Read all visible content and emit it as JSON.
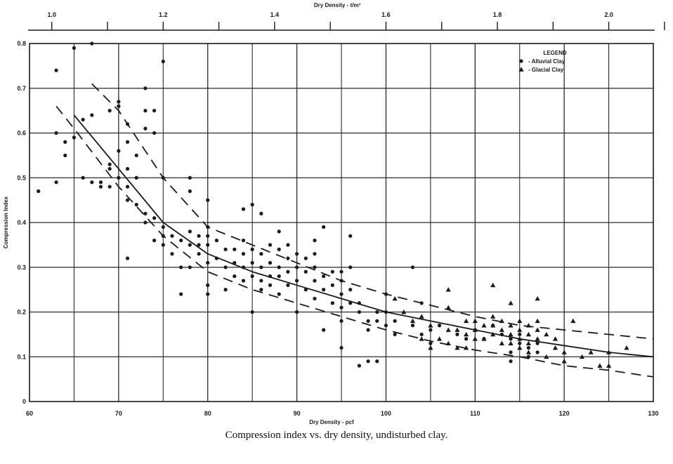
{
  "caption": "Compression index vs. dry density, undisturbed clay.",
  "chart_data": {
    "type": "scatter",
    "xlabel": "Dry Density - pcf",
    "ylabel": "Compression Index",
    "x2label": "Dry Density - t/m³",
    "xlim": [
      60,
      130
    ],
    "ylim": [
      0,
      0.8
    ],
    "x2lim": [
      0.96,
      2.08
    ],
    "x_ticks": [
      "60",
      "70",
      "80",
      "90",
      "100",
      "110",
      "120",
      "130"
    ],
    "y_ticks": [
      "0",
      "0.1",
      "0.2",
      "0.3",
      "0.4",
      "0.5",
      "0.6",
      "0.7",
      "0.8"
    ],
    "x2_ticks": [
      "1.0",
      "1.2",
      "1.4",
      "1.6",
      "1.8",
      "2.0"
    ],
    "grid": true,
    "legend": {
      "title": "LEGEND",
      "position": "top-right",
      "entries": [
        {
          "marker": "circle",
          "label": "- Alluvial Clay"
        },
        {
          "marker": "triangle",
          "label": "- Glacial Clay"
        }
      ]
    },
    "series": [
      {
        "name": "Alluvial Clay",
        "marker": "circle",
        "points": [
          [
            61,
            0.47
          ],
          [
            63,
            0.74
          ],
          [
            63,
            0.6
          ],
          [
            63,
            0.49
          ],
          [
            64,
            0.58
          ],
          [
            64,
            0.55
          ],
          [
            65,
            0.79
          ],
          [
            65,
            0.59
          ],
          [
            66,
            0.63
          ],
          [
            66,
            0.5
          ],
          [
            67,
            0.8
          ],
          [
            67,
            0.64
          ],
          [
            67,
            0.49
          ],
          [
            68,
            0.49
          ],
          [
            68,
            0.48
          ],
          [
            69,
            0.65
          ],
          [
            69,
            0.53
          ],
          [
            69,
            0.52
          ],
          [
            69,
            0.48
          ],
          [
            70,
            0.67
          ],
          [
            70,
            0.66
          ],
          [
            70,
            0.56
          ],
          [
            70,
            0.5
          ],
          [
            71,
            0.62
          ],
          [
            71,
            0.58
          ],
          [
            71,
            0.52
          ],
          [
            71,
            0.48
          ],
          [
            71,
            0.45
          ],
          [
            71,
            0.32
          ],
          [
            72,
            0.55
          ],
          [
            72,
            0.5
          ],
          [
            72,
            0.44
          ],
          [
            73,
            0.7
          ],
          [
            73,
            0.65
          ],
          [
            73,
            0.61
          ],
          [
            73,
            0.42
          ],
          [
            73,
            0.4
          ],
          [
            74,
            0.65
          ],
          [
            74,
            0.6
          ],
          [
            74,
            0.41
          ],
          [
            74,
            0.36
          ],
          [
            75,
            0.76
          ],
          [
            75,
            0.5
          ],
          [
            75,
            0.39
          ],
          [
            75,
            0.37
          ],
          [
            75,
            0.35
          ],
          [
            76,
            0.37
          ],
          [
            76,
            0.33
          ],
          [
            77,
            0.36
          ],
          [
            77,
            0.24
          ],
          [
            77,
            0.3
          ],
          [
            78,
            0.5
          ],
          [
            78,
            0.47
          ],
          [
            78,
            0.38
          ],
          [
            78,
            0.35
          ],
          [
            78,
            0.3
          ],
          [
            79,
            0.37
          ],
          [
            79,
            0.35
          ],
          [
            79,
            0.33
          ],
          [
            80,
            0.45
          ],
          [
            80,
            0.39
          ],
          [
            80,
            0.37
          ],
          [
            80,
            0.35
          ],
          [
            80,
            0.31
          ],
          [
            80,
            0.26
          ],
          [
            80,
            0.24
          ],
          [
            81,
            0.36
          ],
          [
            81,
            0.32
          ],
          [
            82,
            0.34
          ],
          [
            82,
            0.3
          ],
          [
            82,
            0.25
          ],
          [
            83,
            0.34
          ],
          [
            83,
            0.31
          ],
          [
            83,
            0.28
          ],
          [
            84,
            0.43
          ],
          [
            84,
            0.36
          ],
          [
            84,
            0.33
          ],
          [
            84,
            0.3
          ],
          [
            84,
            0.27
          ],
          [
            85,
            0.44
          ],
          [
            85,
            0.34
          ],
          [
            85,
            0.31
          ],
          [
            85,
            0.28
          ],
          [
            85,
            0.2
          ],
          [
            86,
            0.42
          ],
          [
            86,
            0.33
          ],
          [
            86,
            0.3
          ],
          [
            86,
            0.27
          ],
          [
            86,
            0.25
          ],
          [
            87,
            0.35
          ],
          [
            87,
            0.31
          ],
          [
            87,
            0.28
          ],
          [
            87,
            0.26
          ],
          [
            88,
            0.38
          ],
          [
            88,
            0.34
          ],
          [
            88,
            0.3
          ],
          [
            88,
            0.28
          ],
          [
            88,
            0.24
          ],
          [
            89,
            0.35
          ],
          [
            89,
            0.32
          ],
          [
            89,
            0.29
          ],
          [
            89,
            0.26
          ],
          [
            90,
            0.33
          ],
          [
            90,
            0.3
          ],
          [
            90,
            0.27
          ],
          [
            90,
            0.2
          ],
          [
            91,
            0.32
          ],
          [
            91,
            0.29
          ],
          [
            91,
            0.25
          ],
          [
            92,
            0.36
          ],
          [
            92,
            0.33
          ],
          [
            92,
            0.3
          ],
          [
            92,
            0.27
          ],
          [
            92,
            0.23
          ],
          [
            93,
            0.39
          ],
          [
            93,
            0.28
          ],
          [
            93,
            0.25
          ],
          [
            93,
            0.16
          ],
          [
            94,
            0.29
          ],
          [
            94,
            0.26
          ],
          [
            94,
            0.22
          ],
          [
            95,
            0.29
          ],
          [
            95,
            0.27
          ],
          [
            95,
            0.24
          ],
          [
            95,
            0.21
          ],
          [
            95,
            0.18
          ],
          [
            95,
            0.12
          ],
          [
            96,
            0.37
          ],
          [
            96,
            0.3
          ],
          [
            96,
            0.25
          ],
          [
            96,
            0.22
          ],
          [
            97,
            0.22
          ],
          [
            97,
            0.2
          ],
          [
            97,
            0.08
          ],
          [
            98,
            0.18
          ],
          [
            98,
            0.16
          ],
          [
            98,
            0.09
          ],
          [
            99,
            0.2
          ],
          [
            99,
            0.18
          ],
          [
            99,
            0.09
          ],
          [
            100,
            0.24
          ],
          [
            100,
            0.2
          ],
          [
            100,
            0.17
          ],
          [
            101,
            0.18
          ],
          [
            101,
            0.15
          ],
          [
            103,
            0.3
          ],
          [
            103,
            0.17
          ],
          [
            104,
            0.22
          ],
          [
            104,
            0.15
          ],
          [
            105,
            0.16
          ],
          [
            105,
            0.13
          ],
          [
            106,
            0.17
          ],
          [
            108,
            0.15
          ],
          [
            109,
            0.14
          ],
          [
            110,
            0.16
          ],
          [
            111,
            0.14
          ],
          [
            112,
            0.17
          ],
          [
            113,
            0.15
          ],
          [
            114,
            0.14
          ],
          [
            114,
            0.11
          ],
          [
            114,
            0.09
          ],
          [
            115,
            0.15
          ],
          [
            115,
            0.13
          ],
          [
            116,
            0.12
          ],
          [
            116,
            0.1
          ],
          [
            117,
            0.13
          ],
          [
            117,
            0.11
          ]
        ]
      },
      {
        "name": "Glacial Clay",
        "marker": "triangle",
        "points": [
          [
            101,
            0.23
          ],
          [
            102,
            0.2
          ],
          [
            103,
            0.18
          ],
          [
            104,
            0.19
          ],
          [
            104,
            0.14
          ],
          [
            105,
            0.17
          ],
          [
            105,
            0.12
          ],
          [
            106,
            0.14
          ],
          [
            107,
            0.25
          ],
          [
            107,
            0.21
          ],
          [
            107,
            0.16
          ],
          [
            107,
            0.13
          ],
          [
            108,
            0.16
          ],
          [
            108,
            0.12
          ],
          [
            109,
            0.18
          ],
          [
            109,
            0.15
          ],
          [
            109,
            0.12
          ],
          [
            110,
            0.18
          ],
          [
            110,
            0.16
          ],
          [
            110,
            0.14
          ],
          [
            111,
            0.17
          ],
          [
            111,
            0.14
          ],
          [
            112,
            0.26
          ],
          [
            112,
            0.19
          ],
          [
            112,
            0.17
          ],
          [
            112,
            0.15
          ],
          [
            113,
            0.18
          ],
          [
            113,
            0.16
          ],
          [
            113,
            0.13
          ],
          [
            114,
            0.22
          ],
          [
            114,
            0.17
          ],
          [
            114,
            0.15
          ],
          [
            114,
            0.13
          ],
          [
            115,
            0.18
          ],
          [
            115,
            0.16
          ],
          [
            115,
            0.14
          ],
          [
            115,
            0.12
          ],
          [
            116,
            0.17
          ],
          [
            116,
            0.15
          ],
          [
            116,
            0.13
          ],
          [
            116,
            0.11
          ],
          [
            117,
            0.23
          ],
          [
            117,
            0.18
          ],
          [
            117,
            0.16
          ],
          [
            117,
            0.14
          ],
          [
            118,
            0.15
          ],
          [
            118,
            0.1
          ],
          [
            119,
            0.14
          ],
          [
            119,
            0.12
          ],
          [
            120,
            0.11
          ],
          [
            120,
            0.09
          ],
          [
            121,
            0.18
          ],
          [
            122,
            0.1
          ],
          [
            123,
            0.11
          ],
          [
            124,
            0.08
          ],
          [
            125,
            0.11
          ],
          [
            125,
            0.08
          ],
          [
            127,
            0.12
          ]
        ]
      }
    ],
    "curves": [
      {
        "style": "solid",
        "points": [
          [
            65,
            0.64
          ],
          [
            70,
            0.52
          ],
          [
            75,
            0.4
          ],
          [
            80,
            0.33
          ],
          [
            85,
            0.29
          ],
          [
            90,
            0.26
          ],
          [
            95,
            0.23
          ],
          [
            100,
            0.2
          ],
          [
            105,
            0.18
          ],
          [
            110,
            0.16
          ],
          [
            115,
            0.14
          ],
          [
            120,
            0.125
          ],
          [
            125,
            0.11
          ],
          [
            130,
            0.1
          ]
        ]
      },
      {
        "style": "dashed",
        "points": [
          [
            67,
            0.71
          ],
          [
            70,
            0.65
          ],
          [
            75,
            0.5
          ],
          [
            80,
            0.39
          ],
          [
            85,
            0.35
          ],
          [
            90,
            0.31
          ],
          [
            95,
            0.27
          ],
          [
            100,
            0.24
          ],
          [
            105,
            0.215
          ],
          [
            110,
            0.19
          ],
          [
            115,
            0.17
          ],
          [
            120,
            0.16
          ],
          [
            125,
            0.15
          ],
          [
            130,
            0.14
          ]
        ]
      },
      {
        "style": "dashed",
        "points": [
          [
            63,
            0.66
          ],
          [
            65,
            0.61
          ],
          [
            70,
            0.48
          ],
          [
            75,
            0.37
          ],
          [
            80,
            0.29
          ],
          [
            85,
            0.25
          ],
          [
            90,
            0.22
          ],
          [
            95,
            0.19
          ],
          [
            100,
            0.16
          ],
          [
            105,
            0.135
          ],
          [
            110,
            0.115
          ],
          [
            115,
            0.1
          ],
          [
            120,
            0.08
          ],
          [
            125,
            0.07
          ],
          [
            130,
            0.055
          ]
        ]
      }
    ]
  }
}
